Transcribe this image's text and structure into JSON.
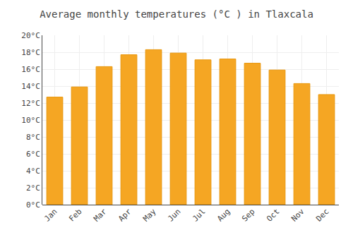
{
  "chart_data": {
    "type": "bar",
    "title": "Average monthly temperatures (°C ) in Tlaxcala",
    "categories": [
      "Jan",
      "Feb",
      "Mar",
      "Apr",
      "May",
      "Jun",
      "Jul",
      "Aug",
      "Sep",
      "Oct",
      "Nov",
      "Dec"
    ],
    "values": [
      12.7,
      13.9,
      16.3,
      17.7,
      18.3,
      17.9,
      17.1,
      17.2,
      16.7,
      15.9,
      14.3,
      13.0
    ],
    "color": "#F5A623",
    "ylim": [
      0,
      20
    ],
    "yticks": [
      {
        "value": 0,
        "label": "0°C"
      },
      {
        "value": 2,
        "label": "2°C"
      },
      {
        "value": 4,
        "label": "4°C"
      },
      {
        "value": 6,
        "label": "6°C"
      },
      {
        "value": 8,
        "label": "8°C"
      },
      {
        "value": 10,
        "label": "10°C"
      },
      {
        "value": 12,
        "label": "12°C"
      },
      {
        "value": 14,
        "label": "14°C"
      },
      {
        "value": 16,
        "label": "16°C"
      },
      {
        "value": 18,
        "label": "18°C"
      },
      {
        "value": 20,
        "label": "20°C"
      }
    ],
    "grid": true
  }
}
